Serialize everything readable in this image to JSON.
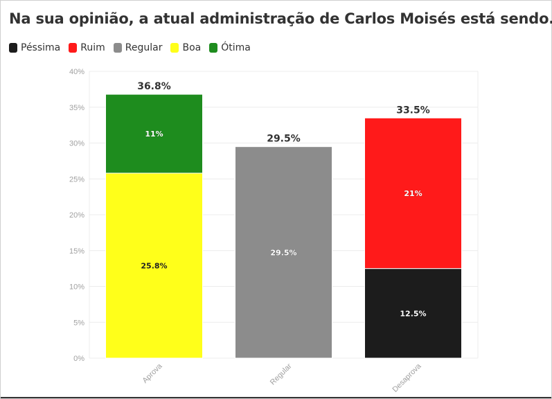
{
  "chart_data": {
    "type": "bar",
    "stacked": true,
    "title": "Na sua opinião, a atual administração de Carlos Moisés está sendo...",
    "categories": [
      "Aprova",
      "Regular",
      "Desaprova"
    ],
    "series": [
      {
        "name": "Péssima",
        "color": "#1c1c1c",
        "values": [
          0,
          0,
          12.5
        ],
        "labels": [
          "",
          "",
          "12.5%"
        ]
      },
      {
        "name": "Ruim",
        "color": "#ff1a1a",
        "values": [
          0,
          0,
          21
        ],
        "labels": [
          "",
          "",
          "21%"
        ]
      },
      {
        "name": "Regular",
        "color": "#8c8c8c",
        "values": [
          0,
          29.5,
          0
        ],
        "labels": [
          "",
          "29.5%",
          ""
        ]
      },
      {
        "name": "Boa",
        "color": "#ffff1a",
        "values": [
          25.8,
          0,
          0
        ],
        "labels": [
          "25.8%",
          "",
          ""
        ]
      },
      {
        "name": "Ótima",
        "color": "#1e8c1e",
        "values": [
          11,
          0,
          0
        ],
        "labels": [
          "11%",
          "",
          ""
        ]
      }
    ],
    "totals": [
      "36.8%",
      "29.5%",
      "33.5%"
    ],
    "ylim": [
      0,
      40
    ],
    "yticks": [
      0,
      5,
      10,
      15,
      20,
      25,
      30,
      35,
      40
    ],
    "ytick_labels": [
      "0%",
      "5%",
      "10%",
      "15%",
      "20%",
      "25%",
      "30%",
      "35%",
      "40%"
    ],
    "xlabel": "",
    "ylabel": "",
    "grid": true,
    "legend_position": "top-left"
  }
}
